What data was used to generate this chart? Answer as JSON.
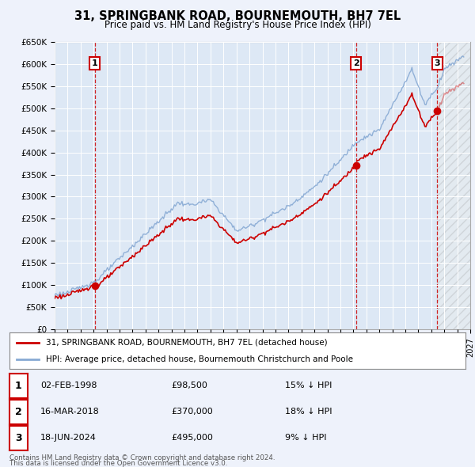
{
  "title": "31, SPRINGBANK ROAD, BOURNEMOUTH, BH7 7EL",
  "subtitle": "Price paid vs. HM Land Registry's House Price Index (HPI)",
  "background_color": "#eef2fb",
  "plot_bg_color": "#dde8f5",
  "hpi_color": "#88aad4",
  "price_color": "#cc0000",
  "vline_color": "#cc0000",
  "transactions": [
    {
      "num": 1,
      "date": "02-FEB-1998",
      "price": 98500,
      "pct": "15%",
      "year": 1998.09
    },
    {
      "num": 2,
      "date": "16-MAR-2018",
      "price": 370000,
      "pct": "18%",
      "year": 2018.21
    },
    {
      "num": 3,
      "date": "18-JUN-2024",
      "price": 495000,
      "pct": "9%",
      "year": 2024.46
    }
  ],
  "legend1": "31, SPRINGBANK ROAD, BOURNEMOUTH, BH7 7EL (detached house)",
  "legend2": "HPI: Average price, detached house, Bournemouth Christchurch and Poole",
  "footnote1": "Contains HM Land Registry data © Crown copyright and database right 2024.",
  "footnote2": "This data is licensed under the Open Government Licence v3.0.",
  "xmin": 1995,
  "xmax": 2027,
  "ymin": 0,
  "ymax": 650000
}
